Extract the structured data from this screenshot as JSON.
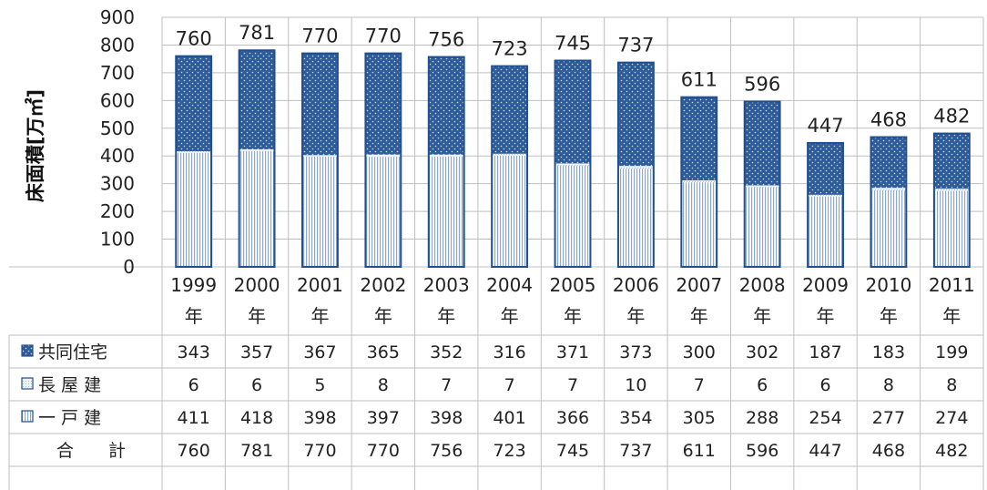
{
  "chart_data": {
    "type": "bar",
    "stacked": true,
    "ylabel": "床面積[万㎡]",
    "ylim": [
      0,
      900
    ],
    "yticks": [
      0,
      100,
      200,
      300,
      400,
      500,
      600,
      700,
      800,
      900
    ],
    "grid": true,
    "categories": [
      [
        "1999",
        "年"
      ],
      [
        "2000",
        "年"
      ],
      [
        "2001",
        "年"
      ],
      [
        "2002",
        "年"
      ],
      [
        "2003",
        "年"
      ],
      [
        "2004",
        "年"
      ],
      [
        "2005",
        "年"
      ],
      [
        "2006",
        "年"
      ],
      [
        "2007",
        "年"
      ],
      [
        "2008",
        "年"
      ],
      [
        "2009",
        "年"
      ],
      [
        "2010",
        "年"
      ],
      [
        "2011",
        "年"
      ]
    ],
    "series": [
      {
        "name": "一 戸 建",
        "values": [
          411,
          418,
          398,
          397,
          398,
          401,
          366,
          354,
          305,
          288,
          254,
          277,
          274
        ]
      },
      {
        "name": "長 屋 建",
        "values": [
          6,
          6,
          5,
          8,
          7,
          7,
          7,
          10,
          7,
          6,
          6,
          8,
          8
        ]
      },
      {
        "name": "共同住宅",
        "values": [
          343,
          357,
          367,
          365,
          352,
          316,
          371,
          373,
          300,
          302,
          187,
          183,
          199
        ]
      }
    ],
    "totals": [
      760,
      781,
      770,
      770,
      756,
      723,
      745,
      737,
      611,
      596,
      447,
      468,
      482
    ],
    "table": {
      "total_label": "合　　計"
    },
    "colors": {
      "kodate_fill": "#d6e0f0",
      "nagaya_fill": "#e4ebf6",
      "kyodo_fill": "#2e5c9a",
      "bar_border": "#1f4f8e",
      "grid": "#bfbfbf"
    }
  }
}
